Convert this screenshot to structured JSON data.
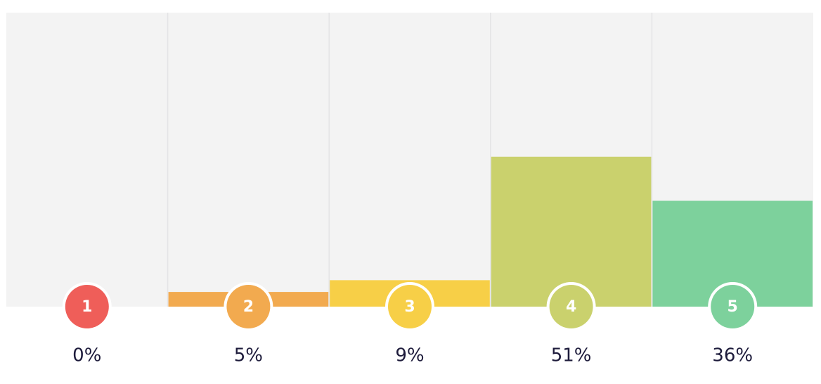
{
  "chart_data": {
    "type": "bar",
    "categories": [
      "1",
      "2",
      "3",
      "4",
      "5"
    ],
    "values": [
      0,
      5,
      9,
      51,
      36
    ],
    "value_labels": [
      "0%",
      "5%",
      "9%",
      "51%",
      "36%"
    ],
    "colors": [
      "#ef5e59",
      "#f2aa4f",
      "#f7cf47",
      "#cad16d",
      "#7dd19c"
    ],
    "ylim": [
      0,
      100
    ]
  }
}
